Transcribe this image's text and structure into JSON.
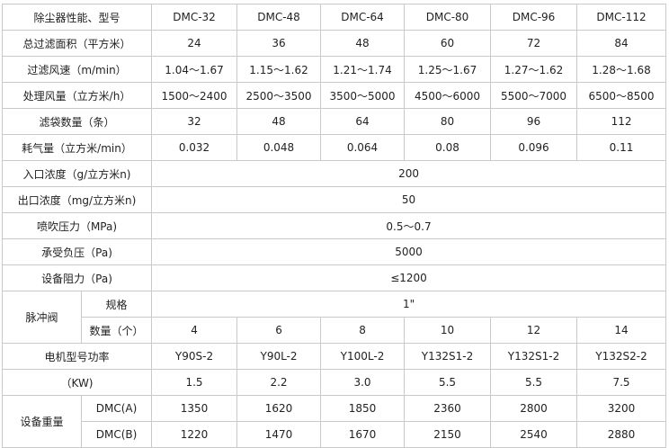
{
  "header": {
    "label": "除尘器性能、型号",
    "models": [
      "DMC-32",
      "DMC-48",
      "DMC-64",
      "DMC-80",
      "DMC-96",
      "DMC-112"
    ]
  },
  "rows": [
    {
      "label": "总过滤面积（平方米）",
      "values": [
        "24",
        "36",
        "48",
        "60",
        "72",
        "84"
      ]
    },
    {
      "label": "过滤风速（m/min）",
      "values": [
        "1.04～1.67",
        "1.15～1.62",
        "1.21～1.74",
        "1.25～1.67",
        "1.27～1.62",
        "1.28～1.68"
      ]
    },
    {
      "label": "处理风量（立方米/h）",
      "values": [
        "1500～2400",
        "2500～3500",
        "3500～5000",
        "4500～6000",
        "5500～7000",
        "6500～8500"
      ]
    },
    {
      "label": "滤袋数量（条）",
      "values": [
        "32",
        "48",
        "64",
        "80",
        "96",
        "112"
      ]
    },
    {
      "label": "耗气量（立方米/min）",
      "values": [
        "0.032",
        "0.048",
        "0.064",
        "0.08",
        "0.096",
        "0.11"
      ]
    }
  ],
  "merged_rows": [
    {
      "label": "入口浓度（g/立方米n)",
      "value": "200"
    },
    {
      "label": "出口浓度（mg/立方米n)",
      "value": "50"
    },
    {
      "label": "喷吹压力（MPa)",
      "value": "0.5～0.7"
    },
    {
      "label": "承受负压（Pa)",
      "value": "5000"
    },
    {
      "label": "设备阻力（Pa)",
      "value": "≤1200"
    }
  ],
  "pulse_valve": {
    "label": "脉冲阀",
    "spec_label": "规格",
    "spec_value": "1\"",
    "count_label": "数量（个）",
    "counts": [
      "4",
      "6",
      "8",
      "10",
      "12",
      "14"
    ]
  },
  "motor": {
    "label": "电机型号功率",
    "models": [
      "Y90S-2",
      "Y90L-2",
      "Y100L-2",
      "Y132S1-2",
      "Y132S1-2",
      "Y132S2-2"
    ],
    "unit_label": "（KW)",
    "powers": [
      "1.5",
      "2.2",
      "3.0",
      "5.5",
      "5.5",
      "7.5"
    ]
  },
  "weight": {
    "label": "设备重量",
    "rows": [
      {
        "label": "DMC(A)",
        "values": [
          "1350",
          "1620",
          "1850",
          "2360",
          "2800",
          "3200"
        ]
      },
      {
        "label": "DMC(B)",
        "values": [
          "1220",
          "1470",
          "1670",
          "2150",
          "2540",
          "2880"
        ]
      }
    ]
  }
}
